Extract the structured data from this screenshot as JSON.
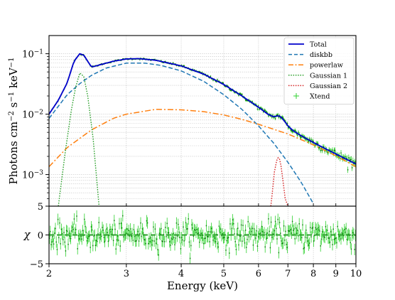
{
  "chart_data": [
    {
      "type": "line",
      "role": "spectrum",
      "ylabel": "Photons cm$^{-2}$ s$^{-1}$ keV$^{-1}$",
      "x_scale": "log",
      "y_scale": "log",
      "xlim": [
        2,
        10
      ],
      "ylim": [
        0.0003,
        0.2
      ],
      "y_ticks": [
        {
          "value": 0.001,
          "base": "10",
          "exp": "−3"
        },
        {
          "value": 0.01,
          "base": "10",
          "exp": "−2"
        },
        {
          "value": 0.1,
          "base": "10",
          "exp": "−1"
        }
      ],
      "grid": true,
      "legend_position": "top-right",
      "legend": [
        {
          "label": "Total",
          "color": "#0000cc",
          "style": "solid"
        },
        {
          "label": "diskbb",
          "color": "#1f77b4",
          "style": "dashed"
        },
        {
          "label": "powerlaw",
          "color": "#ff7f0e",
          "style": "dashdot"
        },
        {
          "label": "Gaussian 1",
          "color": "#2ca02c",
          "style": "dotted"
        },
        {
          "label": "Gaussian 2",
          "color": "#d62728",
          "style": "dotted"
        },
        {
          "label": "Xtend",
          "color": "#2fd12f",
          "style": "errorbar"
        }
      ],
      "series": [
        {
          "name": "diskbb",
          "color": "#1f77b4",
          "x": [
            2.0,
            2.1,
            2.2,
            2.35,
            2.5,
            2.7,
            3.0,
            3.3,
            3.6,
            4.0,
            4.5,
            5.0,
            5.5,
            6.0,
            6.5,
            7.0,
            7.5,
            8.0
          ],
          "y": [
            0.0085,
            0.0135,
            0.021,
            0.032,
            0.044,
            0.058,
            0.07,
            0.07,
            0.064,
            0.052,
            0.035,
            0.021,
            0.012,
            0.0064,
            0.0033,
            0.0016,
            0.00075,
            0.00033
          ]
        },
        {
          "name": "powerlaw",
          "color": "#ff7f0e",
          "x": [
            2.0,
            2.2,
            2.5,
            2.8,
            3.0,
            3.5,
            4.0,
            4.5,
            5.0,
            5.5,
            6.0,
            7.0,
            8.0,
            9.0,
            10.0
          ],
          "y": [
            0.00135,
            0.0028,
            0.0055,
            0.0085,
            0.01,
            0.012,
            0.0118,
            0.011,
            0.0097,
            0.0082,
            0.0068,
            0.0047,
            0.0031,
            0.00205,
            0.00135
          ]
        },
        {
          "name": "Gaussian 1",
          "color": "#2ca02c",
          "x": [
            2.1,
            2.18,
            2.25,
            2.3,
            2.35,
            2.4,
            2.45,
            2.52,
            2.6
          ],
          "y": [
            0.0003,
            0.0025,
            0.012,
            0.028,
            0.048,
            0.042,
            0.02,
            0.004,
            0.0003
          ]
        },
        {
          "name": "Gaussian 2",
          "color": "#d62728",
          "x": [
            6.4,
            6.45,
            6.52,
            6.6,
            6.65,
            6.7,
            6.75,
            6.82,
            6.9,
            7.0
          ],
          "y": [
            0.0003,
            0.0005,
            0.0011,
            0.0017,
            0.0019,
            0.0018,
            0.0014,
            0.0008,
            0.0004,
            0.0003
          ]
        },
        {
          "name": "Total",
          "color": "#0000cc",
          "x": [
            2.0,
            2.1,
            2.2,
            2.28,
            2.35,
            2.4,
            2.45,
            2.5,
            2.6,
            2.8,
            3.0,
            3.2,
            3.5,
            4.0,
            4.5,
            5.0,
            5.5,
            6.0,
            6.3,
            6.5,
            6.65,
            6.75,
            6.9,
            7.0,
            7.2,
            7.5,
            8.0,
            8.5,
            9.0,
            9.5,
            10.0
          ],
          "y": [
            0.01,
            0.017,
            0.033,
            0.075,
            0.1,
            0.095,
            0.075,
            0.06,
            0.065,
            0.075,
            0.082,
            0.083,
            0.078,
            0.063,
            0.046,
            0.031,
            0.02,
            0.013,
            0.01,
            0.009,
            0.0095,
            0.009,
            0.0074,
            0.0064,
            0.0053,
            0.0044,
            0.0034,
            0.0027,
            0.0022,
            0.0018,
            0.0015
          ]
        }
      ]
    },
    {
      "type": "scatter",
      "role": "residuals",
      "xlabel": "Energy (keV)",
      "ylabel": "χ",
      "x_scale": "log",
      "xlim": [
        2,
        10
      ],
      "ylim": [
        -5,
        5
      ],
      "y_ticks": [
        {
          "value": -5,
          "label": "−5"
        },
        {
          "value": 0,
          "label": "0"
        },
        {
          "value": 5,
          "label": "5"
        }
      ],
      "x_ticks": [
        {
          "value": 2,
          "label": "2"
        },
        {
          "value": 3,
          "label": "3"
        },
        {
          "value": 4,
          "label": "4"
        },
        {
          "value": 5,
          "label": "5"
        },
        {
          "value": 6,
          "label": "6"
        },
        {
          "value": 7,
          "label": "7"
        },
        {
          "value": 8,
          "label": "8"
        },
        {
          "value": 9,
          "label": "9"
        },
        {
          "value": 10,
          "label": "10"
        }
      ],
      "reference_line": {
        "y": 0,
        "color": "#2ca02c",
        "style": "dashed"
      },
      "points_color": "#2fd12f",
      "residual_scatter_sigma": 1.2
    }
  ]
}
